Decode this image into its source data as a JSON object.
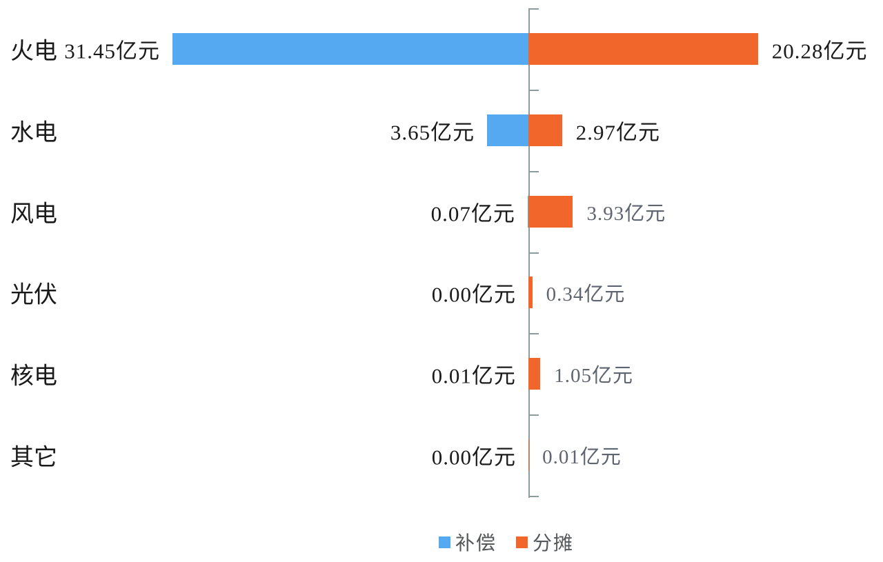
{
  "chart_data": {
    "type": "bar",
    "variant": "diverging-horizontal",
    "title": "",
    "unit": "亿元",
    "grid": false,
    "legend_position": "bottom",
    "legend": [
      {
        "label": "补偿",
        "color": "#55A9F0"
      },
      {
        "label": "分摊",
        "color": "#F0662B"
      }
    ],
    "colors": {
      "text": "#1a1a1a",
      "muted_label": "#5E6470",
      "legend_text": "#54585B",
      "axis": "#8C9B9B"
    },
    "categories": [
      "火电",
      "水电",
      "风电",
      "光伏",
      "核电",
      "其它"
    ],
    "series": [
      {
        "name": "补偿",
        "values": [
          31.45,
          3.65,
          0.07,
          0.0,
          0.01,
          0.0
        ]
      },
      {
        "name": "分摊",
        "values": [
          20.28,
          2.97,
          3.93,
          0.34,
          1.05,
          0.01
        ]
      }
    ],
    "rows": [
      {
        "category": "火电",
        "compensation": 31.45,
        "compensation_label": "31.45亿元",
        "allocation": 20.28,
        "allocation_label": "20.28亿元",
        "allocation_label_muted": false
      },
      {
        "category": "水电",
        "compensation": 3.65,
        "compensation_label": "3.65亿元",
        "allocation": 2.97,
        "allocation_label": "2.97亿元",
        "allocation_label_muted": false
      },
      {
        "category": "风电",
        "compensation": 0.07,
        "compensation_label": "0.07亿元",
        "allocation": 3.93,
        "allocation_label": "3.93亿元",
        "allocation_label_muted": true
      },
      {
        "category": "光伏",
        "compensation": 0.0,
        "compensation_label": "0.00亿元",
        "allocation": 0.34,
        "allocation_label": "0.34亿元",
        "allocation_label_muted": true
      },
      {
        "category": "核电",
        "compensation": 0.01,
        "compensation_label": "0.01亿元",
        "allocation": 1.05,
        "allocation_label": "1.05亿元",
        "allocation_label_muted": true
      },
      {
        "category": "其它",
        "compensation": 0.0,
        "compensation_label": "0.00亿元",
        "allocation": 0.01,
        "allocation_label": "0.01亿元",
        "allocation_label_muted": true
      }
    ]
  }
}
